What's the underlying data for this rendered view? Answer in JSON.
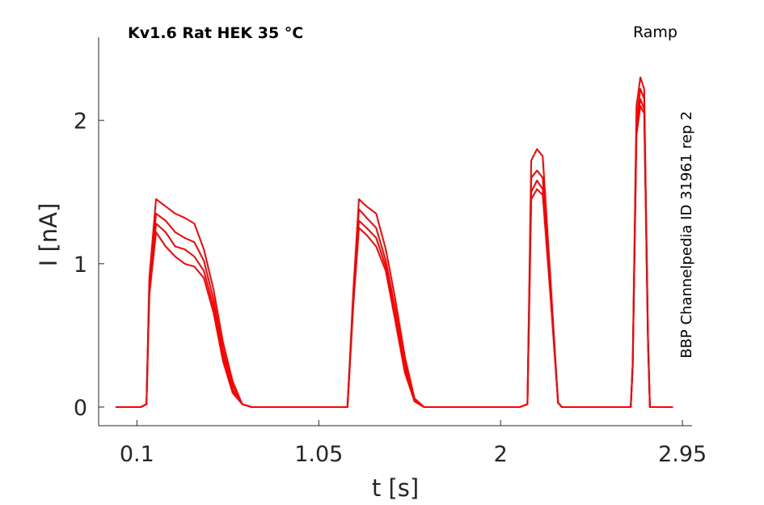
{
  "chart_data": {
    "type": "line",
    "title": "Kv1.6  Rat  HEK  35 °C",
    "protocol_label": "Ramp",
    "side_label": "BBP Channelpedia ID 31961 rep 2",
    "xlabel": "t [s]",
    "ylabel": "I [nA]",
    "xlim": [
      -0.1,
      3.0
    ],
    "ylim": [
      -0.13,
      2.58
    ],
    "xticks": [
      0.1,
      1.05,
      2,
      2.95
    ],
    "xtick_labels": [
      "0.1",
      "1.05",
      "2",
      "2.95"
    ],
    "yticks": [
      0,
      1,
      2
    ],
    "ytick_labels": [
      "0",
      "1",
      "2"
    ],
    "grid": false,
    "color": "#ff0000",
    "series": [
      {
        "x": [
          -0.01,
          0.12,
          0.15,
          0.165,
          0.2,
          0.25,
          0.3,
          0.35,
          0.4,
          0.45,
          0.5,
          0.55,
          0.6,
          0.65,
          0.7,
          0.8,
          1.1,
          1.2,
          1.23,
          1.26,
          1.3,
          1.35,
          1.4,
          1.45,
          1.5,
          1.55,
          1.6,
          1.7,
          1.9,
          2.0,
          2.1,
          2.14,
          2.16,
          2.19,
          2.22,
          2.26,
          2.3,
          2.32,
          2.4,
          2.55,
          2.68,
          2.69,
          2.71,
          2.73,
          2.75,
          2.77,
          2.78,
          2.8,
          2.9
        ],
        "y": [
          0.0,
          0.0,
          0.02,
          0.9,
          1.45,
          1.4,
          1.35,
          1.32,
          1.28,
          1.1,
          0.82,
          0.45,
          0.18,
          0.02,
          0.0,
          0.0,
          0.0,
          0.0,
          0.8,
          1.45,
          1.4,
          1.35,
          1.1,
          0.75,
          0.35,
          0.06,
          0.0,
          0.0,
          0.0,
          0.0,
          0.0,
          0.02,
          1.72,
          1.8,
          1.75,
          0.9,
          0.03,
          0.0,
          0.0,
          0.0,
          0.0,
          0.3,
          2.1,
          2.3,
          2.22,
          0.5,
          0.0,
          0.0,
          0.0
        ]
      },
      {
        "x": [
          -0.01,
          0.12,
          0.15,
          0.165,
          0.2,
          0.25,
          0.3,
          0.35,
          0.4,
          0.45,
          0.5,
          0.55,
          0.6,
          0.65,
          0.7,
          0.8,
          1.1,
          1.2,
          1.23,
          1.26,
          1.3,
          1.35,
          1.4,
          1.45,
          1.5,
          1.55,
          1.6,
          1.7,
          1.9,
          2.0,
          2.1,
          2.14,
          2.16,
          2.19,
          2.22,
          2.26,
          2.3,
          2.32,
          2.4,
          2.55,
          2.68,
          2.69,
          2.71,
          2.73,
          2.75,
          2.77,
          2.78,
          2.8,
          2.9
        ],
        "y": [
          0.0,
          0.0,
          0.02,
          0.85,
          1.35,
          1.3,
          1.22,
          1.18,
          1.15,
          1.02,
          0.75,
          0.4,
          0.15,
          0.02,
          0.0,
          0.0,
          0.0,
          0.0,
          0.75,
          1.38,
          1.32,
          1.25,
          1.02,
          0.68,
          0.3,
          0.05,
          0.0,
          0.0,
          0.0,
          0.0,
          0.0,
          0.02,
          1.6,
          1.65,
          1.6,
          0.85,
          0.03,
          0.0,
          0.0,
          0.0,
          0.0,
          0.3,
          2.0,
          2.22,
          2.15,
          0.48,
          0.0,
          0.0,
          0.0
        ]
      },
      {
        "x": [
          -0.01,
          0.12,
          0.15,
          0.165,
          0.2,
          0.25,
          0.3,
          0.35,
          0.4,
          0.45,
          0.5,
          0.55,
          0.6,
          0.65,
          0.7,
          0.8,
          1.1,
          1.2,
          1.23,
          1.26,
          1.3,
          1.35,
          1.4,
          1.45,
          1.5,
          1.55,
          1.6,
          1.7,
          1.9,
          2.0,
          2.1,
          2.14,
          2.16,
          2.19,
          2.22,
          2.26,
          2.3,
          2.32,
          2.4,
          2.55,
          2.68,
          2.69,
          2.71,
          2.73,
          2.75,
          2.77,
          2.78,
          2.8,
          2.9
        ],
        "y": [
          0.0,
          0.0,
          0.02,
          0.8,
          1.28,
          1.22,
          1.12,
          1.1,
          1.05,
          0.95,
          0.7,
          0.36,
          0.12,
          0.02,
          0.0,
          0.0,
          0.0,
          0.0,
          0.72,
          1.3,
          1.25,
          1.18,
          0.98,
          0.62,
          0.26,
          0.04,
          0.0,
          0.0,
          0.0,
          0.0,
          0.0,
          0.02,
          1.5,
          1.58,
          1.52,
          0.8,
          0.03,
          0.0,
          0.0,
          0.0,
          0.0,
          0.28,
          1.95,
          2.15,
          2.08,
          0.46,
          0.0,
          0.0,
          0.0
        ]
      },
      {
        "x": [
          -0.01,
          0.12,
          0.15,
          0.165,
          0.2,
          0.25,
          0.3,
          0.35,
          0.4,
          0.45,
          0.5,
          0.55,
          0.6,
          0.65,
          0.7,
          0.8,
          1.1,
          1.2,
          1.23,
          1.26,
          1.3,
          1.35,
          1.4,
          1.45,
          1.5,
          1.55,
          1.6,
          1.7,
          1.9,
          2.0,
          2.1,
          2.14,
          2.16,
          2.19,
          2.22,
          2.26,
          2.3,
          2.32,
          2.4,
          2.55,
          2.68,
          2.69,
          2.71,
          2.73,
          2.75,
          2.77,
          2.78,
          2.8,
          2.9
        ],
        "y": [
          0.0,
          0.0,
          0.02,
          0.78,
          1.22,
          1.12,
          1.05,
          1.0,
          0.98,
          0.9,
          0.66,
          0.32,
          0.1,
          0.02,
          0.0,
          0.0,
          0.0,
          0.0,
          0.7,
          1.25,
          1.2,
          1.12,
          0.95,
          0.6,
          0.24,
          0.04,
          0.0,
          0.0,
          0.0,
          0.0,
          0.0,
          0.02,
          1.45,
          1.52,
          1.48,
          0.78,
          0.03,
          0.0,
          0.0,
          0.0,
          0.0,
          0.28,
          1.9,
          2.1,
          2.05,
          0.45,
          0.0,
          0.0,
          0.0
        ]
      }
    ]
  }
}
